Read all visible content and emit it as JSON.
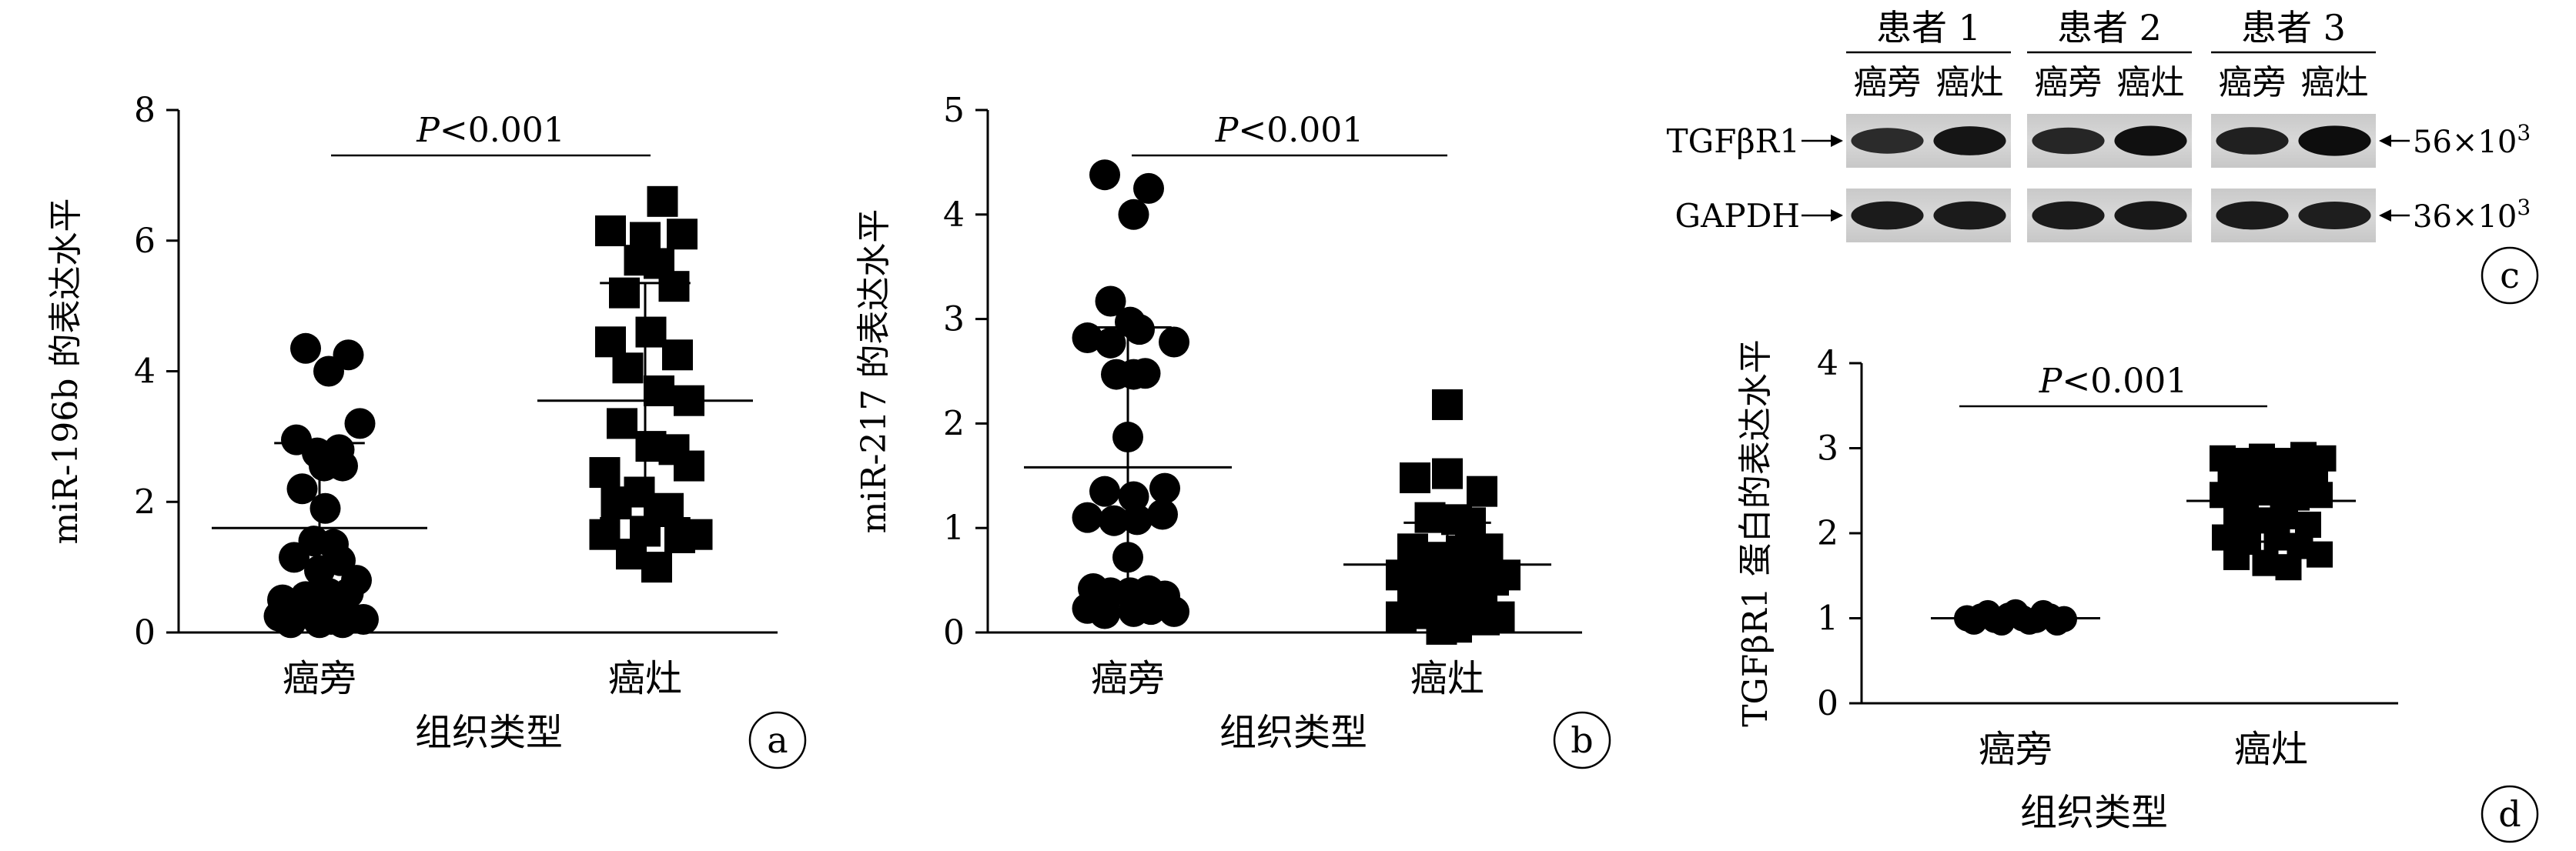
{
  "panels": [
    {
      "letter": "a",
      "chart_data": {
        "type": "scatter",
        "ylabel": "miR-196b 的表达水平",
        "xlabel": "组织类型",
        "categories": [
          "癌旁",
          "癌灶"
        ],
        "ylim": [
          0,
          8
        ],
        "yticks": [
          "0",
          "2",
          "4",
          "6",
          "8"
        ],
        "pvalue": {
          "italic": "P",
          "text": "<0.001"
        },
        "series": [
          {
            "marker": "circle",
            "mean": 1.6,
            "sd_low": 0.3,
            "sd_high": 2.9,
            "points": [
              [
                -0.12,
                4.35
              ],
              [
                0.08,
                4.0
              ],
              [
                0.25,
                4.25
              ],
              [
                -0.2,
                2.95
              ],
              [
                -0.02,
                2.75
              ],
              [
                0.17,
                2.8
              ],
              [
                0.35,
                3.2
              ],
              [
                0.04,
                2.55
              ],
              [
                0.2,
                2.55
              ],
              [
                -0.15,
                2.2
              ],
              [
                0.05,
                1.9
              ],
              [
                -0.05,
                1.4
              ],
              [
                0.12,
                1.35
              ],
              [
                -0.22,
                1.15
              ],
              [
                0.0,
                0.95
              ],
              [
                0.18,
                1.1
              ],
              [
                0.32,
                0.8
              ],
              [
                -0.32,
                0.5
              ],
              [
                -0.12,
                0.55
              ],
              [
                0.08,
                0.6
              ],
              [
                0.25,
                0.6
              ],
              [
                -0.35,
                0.25
              ],
              [
                -0.2,
                0.3
              ],
              [
                -0.05,
                0.25
              ],
              [
                0.1,
                0.2
              ],
              [
                0.25,
                0.25
              ],
              [
                0.38,
                0.2
              ],
              [
                -0.25,
                0.15
              ],
              [
                0.0,
                0.15
              ],
              [
                0.2,
                0.15
              ]
            ]
          },
          {
            "marker": "square",
            "mean": 3.55,
            "sd_low": 1.75,
            "sd_high": 5.35,
            "points": [
              [
                0.15,
                6.6
              ],
              [
                -0.3,
                6.15
              ],
              [
                0.0,
                6.05
              ],
              [
                0.32,
                6.1
              ],
              [
                -0.05,
                5.7
              ],
              [
                0.12,
                5.65
              ],
              [
                0.25,
                5.3
              ],
              [
                -0.18,
                5.2
              ],
              [
                -0.3,
                4.45
              ],
              [
                0.05,
                4.6
              ],
              [
                0.28,
                4.25
              ],
              [
                -0.15,
                4.05
              ],
              [
                0.38,
                3.55
              ],
              [
                0.12,
                3.7
              ],
              [
                -0.2,
                3.2
              ],
              [
                0.05,
                2.85
              ],
              [
                0.25,
                2.8
              ],
              [
                -0.35,
                2.45
              ],
              [
                0.38,
                2.55
              ],
              [
                -0.05,
                2.15
              ],
              [
                0.12,
                1.85
              ],
              [
                -0.25,
                2.0
              ],
              [
                0.2,
                1.9
              ],
              [
                -0.35,
                1.5
              ],
              [
                0.0,
                1.55
              ],
              [
                0.3,
                1.45
              ],
              [
                0.45,
                1.5
              ],
              [
                -0.12,
                1.2
              ],
              [
                0.1,
                1.0
              ]
            ]
          }
        ]
      }
    },
    {
      "letter": "b",
      "chart_data": {
        "type": "scatter",
        "ylabel": "miR-217 的表达水平",
        "xlabel": "组织类型",
        "categories": [
          "癌旁",
          "癌灶"
        ],
        "ylim": [
          0,
          5
        ],
        "yticks": [
          "0",
          "1",
          "2",
          "3",
          "4",
          "5"
        ],
        "pvalue": {
          "italic": "P",
          "text": "<0.001"
        },
        "series": [
          {
            "marker": "circle",
            "mean": 1.58,
            "sd_low": 0.25,
            "sd_high": 2.92,
            "points": [
              [
                -0.2,
                4.38
              ],
              [
                0.05,
                4.0
              ],
              [
                0.18,
                4.25
              ],
              [
                -0.15,
                3.17
              ],
              [
                0.02,
                2.97
              ],
              [
                -0.35,
                2.82
              ],
              [
                -0.15,
                2.77
              ],
              [
                0.1,
                2.9
              ],
              [
                0.4,
                2.78
              ],
              [
                -0.1,
                2.47
              ],
              [
                0.05,
                2.47
              ],
              [
                0.15,
                2.48
              ],
              [
                0.0,
                1.87
              ],
              [
                -0.2,
                1.35
              ],
              [
                0.05,
                1.3
              ],
              [
                0.32,
                1.38
              ],
              [
                -0.35,
                1.1
              ],
              [
                -0.12,
                1.07
              ],
              [
                0.08,
                1.08
              ],
              [
                0.3,
                1.13
              ],
              [
                0.0,
                0.72
              ],
              [
                -0.3,
                0.42
              ],
              [
                -0.15,
                0.38
              ],
              [
                0.02,
                0.38
              ],
              [
                0.18,
                0.4
              ],
              [
                0.32,
                0.35
              ],
              [
                -0.35,
                0.23
              ],
              [
                -0.2,
                0.18
              ],
              [
                0.05,
                0.2
              ],
              [
                0.2,
                0.22
              ],
              [
                0.4,
                0.2
              ]
            ]
          },
          {
            "marker": "square",
            "mean": 0.65,
            "sd_low": 0.2,
            "sd_high": 1.05,
            "points": [
              [
                0.0,
                2.18
              ],
              [
                -0.28,
                1.48
              ],
              [
                0.0,
                1.52
              ],
              [
                0.3,
                1.35
              ],
              [
                -0.15,
                1.1
              ],
              [
                0.08,
                1.08
              ],
              [
                0.2,
                1.05
              ],
              [
                -0.3,
                0.8
              ],
              [
                -0.08,
                0.72
              ],
              [
                0.12,
                0.78
              ],
              [
                0.35,
                0.8
              ],
              [
                -0.4,
                0.55
              ],
              [
                -0.2,
                0.6
              ],
              [
                0.0,
                0.55
              ],
              [
                0.2,
                0.6
              ],
              [
                0.4,
                0.5
              ],
              [
                0.5,
                0.55
              ],
              [
                -0.3,
                0.35
              ],
              [
                -0.1,
                0.35
              ],
              [
                0.1,
                0.35
              ],
              [
                0.3,
                0.38
              ],
              [
                -0.4,
                0.15
              ],
              [
                -0.2,
                0.18
              ],
              [
                0.0,
                0.12
              ],
              [
                0.15,
                0.15
              ],
              [
                0.32,
                0.12
              ],
              [
                0.45,
                0.15
              ],
              [
                -0.05,
                0.03
              ],
              [
                0.08,
                0.05
              ]
            ]
          }
        ]
      }
    },
    {
      "letter": "d",
      "chart_data": {
        "type": "scatter",
        "ylabel": "TGFβR1 蛋白的表达水平",
        "xlabel": "组织类型",
        "categories": [
          "癌旁",
          "癌灶"
        ],
        "ylim": [
          0,
          4
        ],
        "yticks": [
          "0",
          "1",
          "2",
          "3",
          "4"
        ],
        "pvalue": {
          "italic": "P",
          "text": "<0.001"
        },
        "series": [
          {
            "marker": "circle",
            "mean": 1.0,
            "sd_low": 0.96,
            "sd_high": 1.04,
            "points": [
              [
                -0.42,
                1.0
              ],
              [
                -0.3,
                1.02
              ],
              [
                -0.18,
                0.98
              ],
              [
                -0.06,
                1.03
              ],
              [
                0.06,
                1.0
              ],
              [
                0.18,
                0.98
              ],
              [
                0.3,
                1.02
              ],
              [
                0.42,
                0.99
              ],
              [
                -0.36,
                0.96
              ],
              [
                -0.12,
                0.95
              ],
              [
                0.12,
                0.96
              ],
              [
                0.36,
                0.95
              ],
              [
                -0.24,
                1.06
              ],
              [
                0.0,
                1.07
              ],
              [
                0.24,
                1.06
              ]
            ]
          },
          {
            "marker": "square",
            "mean": 2.38,
            "sd_low": 1.9,
            "sd_high": 2.86,
            "points": [
              [
                -0.42,
                2.88
              ],
              [
                -0.25,
                2.85
              ],
              [
                -0.08,
                2.9
              ],
              [
                0.1,
                2.85
              ],
              [
                0.28,
                2.92
              ],
              [
                0.45,
                2.88
              ],
              [
                -0.35,
                2.65
              ],
              [
                -0.15,
                2.7
              ],
              [
                0.05,
                2.68
              ],
              [
                0.2,
                2.72
              ],
              [
                0.38,
                2.62
              ],
              [
                -0.42,
                2.45
              ],
              [
                -0.22,
                2.4
              ],
              [
                0.0,
                2.48
              ],
              [
                0.22,
                2.42
              ],
              [
                0.42,
                2.45
              ],
              [
                -0.3,
                2.2
              ],
              [
                -0.1,
                2.15
              ],
              [
                0.12,
                2.2
              ],
              [
                0.32,
                2.1
              ],
              [
                -0.4,
                1.95
              ],
              [
                -0.2,
                1.9
              ],
              [
                0.05,
                1.95
              ],
              [
                0.25,
                1.85
              ],
              [
                -0.3,
                1.72
              ],
              [
                -0.05,
                1.65
              ],
              [
                0.15,
                1.6
              ],
              [
                0.42,
                1.75
              ]
            ]
          }
        ]
      }
    }
  ],
  "western_blot": {
    "letter": "c",
    "patients": [
      "患者 1",
      "患者 2",
      "患者 3"
    ],
    "lanes": [
      "癌旁",
      "癌灶"
    ],
    "rows": [
      {
        "label": "TGFβR1",
        "size": "56×10",
        "size_exp": "3",
        "intensity": [
          [
            0.7,
            0.9
          ],
          [
            0.75,
            0.95
          ],
          [
            0.8,
            0.97
          ]
        ]
      },
      {
        "label": "GAPDH",
        "size": "36×10",
        "size_exp": "3",
        "intensity": [
          [
            0.85,
            0.85
          ],
          [
            0.85,
            0.87
          ],
          [
            0.85,
            0.82
          ]
        ]
      }
    ]
  }
}
